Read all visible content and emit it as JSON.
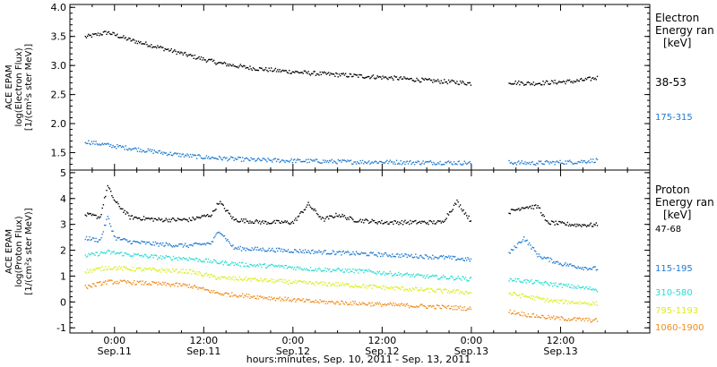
{
  "figure": {
    "xlabel": "hours:minutes, Sep. 10, 2011 - Sep. 13, 2011",
    "x_ticks": [
      {
        "time": "0:00",
        "date": "Sep.11",
        "hours": 0
      },
      {
        "time": "12:00",
        "date": "Sep.11",
        "hours": 12
      },
      {
        "time": "0:00",
        "date": "Sep.12",
        "hours": 24
      },
      {
        "time": "12:00",
        "date": "Sep.12",
        "hours": 36
      },
      {
        "time": "0:00",
        "date": "Sep.13",
        "hours": 48
      },
      {
        "time": "12:00",
        "date": "Sep.13",
        "hours": 60
      }
    ],
    "x_range_hours_from_sep11_0000": [
      -6,
      72
    ]
  },
  "chart_data": [
    {
      "type": "scatter",
      "panel": "electron",
      "ylabel_lines": [
        "ACE EPAM",
        "log(Electron Flux)",
        "[1/(cm²s ster MeV)]"
      ],
      "legend_title_lines": [
        "Electron",
        "Energy ran"
      ],
      "legend_unit": "[keV]",
      "ylim": [
        1.2,
        4.05
      ],
      "yticks": [
        "1.5",
        "2.0",
        "2.5",
        "3.0",
        "3.5",
        "4.0"
      ],
      "data_gap_hours": [
        48.5,
        52.5
      ],
      "series": [
        {
          "name": "38-53",
          "color": "#000000",
          "points": [
            [
              -4,
              3.5
            ],
            [
              -1,
              3.58
            ],
            [
              2,
              3.45
            ],
            [
              6,
              3.32
            ],
            [
              10,
              3.18
            ],
            [
              14,
              3.05
            ],
            [
              18,
              2.97
            ],
            [
              22,
              2.92
            ],
            [
              26,
              2.88
            ],
            [
              30,
              2.85
            ],
            [
              34,
              2.82
            ],
            [
              38,
              2.79
            ],
            [
              42,
              2.75
            ],
            [
              46,
              2.72
            ],
            [
              48,
              2.7
            ],
            [
              53,
              2.72
            ],
            [
              56,
              2.7
            ],
            [
              59,
              2.72
            ],
            [
              62,
              2.74
            ],
            [
              65,
              2.8
            ]
          ]
        },
        {
          "name": "175-315",
          "color": "#1f7ad1",
          "points": [
            [
              -4,
              1.7
            ],
            [
              0,
              1.62
            ],
            [
              4,
              1.55
            ],
            [
              8,
              1.48
            ],
            [
              12,
              1.43
            ],
            [
              16,
              1.4
            ],
            [
              20,
              1.38
            ],
            [
              24,
              1.37
            ],
            [
              28,
              1.36
            ],
            [
              32,
              1.35
            ],
            [
              36,
              1.35
            ],
            [
              40,
              1.34
            ],
            [
              44,
              1.34
            ],
            [
              48,
              1.33
            ],
            [
              53,
              1.34
            ],
            [
              56,
              1.33
            ],
            [
              59,
              1.34
            ],
            [
              62,
              1.35
            ],
            [
              65,
              1.38
            ]
          ]
        }
      ]
    },
    {
      "type": "scatter",
      "panel": "proton",
      "ylabel_lines": [
        "ACE EPAM",
        "log(Proton Flux)",
        "[1/(cm²s ster MeV)]"
      ],
      "legend_title_lines": [
        "Proton",
        "Energy ran"
      ],
      "legend_unit": "[keV]",
      "ylim": [
        -1.2,
        5.1
      ],
      "yticks": [
        "-1",
        "0",
        "1",
        "2",
        "3",
        "4",
        "5"
      ],
      "data_gap_hours": [
        48.5,
        52.5
      ],
      "series": [
        {
          "name": "47-68",
          "color": "#000000",
          "points": [
            [
              -4,
              3.4
            ],
            [
              -2,
              3.3
            ],
            [
              -1,
              4.5
            ],
            [
              0,
              3.9
            ],
            [
              2,
              3.3
            ],
            [
              6,
              3.2
            ],
            [
              10,
              3.2
            ],
            [
              13,
              3.4
            ],
            [
              14,
              3.9
            ],
            [
              16,
              3.2
            ],
            [
              20,
              3.1
            ],
            [
              24,
              3.1
            ],
            [
              26,
              3.8
            ],
            [
              28,
              3.2
            ],
            [
              30,
              3.4
            ],
            [
              32,
              3.2
            ],
            [
              36,
              3.1
            ],
            [
              40,
              3.1
            ],
            [
              44,
              3.1
            ],
            [
              46,
              3.9
            ],
            [
              48,
              3.1
            ],
            [
              53,
              3.5
            ],
            [
              55,
              3.7
            ],
            [
              57,
              3.7
            ],
            [
              58,
              3.1
            ],
            [
              62,
              3.0
            ],
            [
              65,
              3.0
            ]
          ]
        },
        {
          "name": "115-195",
          "color": "#1f7ad1",
          "points": [
            [
              -4,
              2.5
            ],
            [
              -2,
              2.4
            ],
            [
              -1,
              3.3
            ],
            [
              0,
              2.5
            ],
            [
              2,
              2.35
            ],
            [
              6,
              2.25
            ],
            [
              10,
              2.2
            ],
            [
              13,
              2.3
            ],
            [
              14,
              2.8
            ],
            [
              16,
              2.1
            ],
            [
              20,
              2.05
            ],
            [
              24,
              2.0
            ],
            [
              28,
              1.95
            ],
            [
              32,
              1.9
            ],
            [
              36,
              1.85
            ],
            [
              40,
              1.8
            ],
            [
              44,
              1.75
            ],
            [
              48,
              1.65
            ],
            [
              53,
              1.9
            ],
            [
              55,
              2.5
            ],
            [
              57,
              1.8
            ],
            [
              60,
              1.5
            ],
            [
              63,
              1.35
            ],
            [
              65,
              1.3
            ]
          ]
        },
        {
          "name": "310-580",
          "color": "#28dcd2",
          "points": [
            [
              -4,
              1.8
            ],
            [
              -1,
              1.95
            ],
            [
              2,
              1.85
            ],
            [
              6,
              1.75
            ],
            [
              10,
              1.7
            ],
            [
              14,
              1.55
            ],
            [
              18,
              1.45
            ],
            [
              22,
              1.4
            ],
            [
              26,
              1.3
            ],
            [
              30,
              1.25
            ],
            [
              34,
              1.2
            ],
            [
              38,
              1.1
            ],
            [
              42,
              1.0
            ],
            [
              46,
              0.95
            ],
            [
              48,
              0.9
            ],
            [
              53,
              0.9
            ],
            [
              56,
              0.8
            ],
            [
              59,
              0.7
            ],
            [
              62,
              0.6
            ],
            [
              65,
              0.5
            ]
          ]
        },
        {
          "name": "795-1193",
          "color": "#d8ee1c",
          "points": [
            [
              -4,
              1.2
            ],
            [
              -1,
              1.35
            ],
            [
              2,
              1.3
            ],
            [
              6,
              1.25
            ],
            [
              10,
              1.2
            ],
            [
              14,
              0.95
            ],
            [
              18,
              0.9
            ],
            [
              22,
              0.82
            ],
            [
              26,
              0.75
            ],
            [
              30,
              0.7
            ],
            [
              34,
              0.62
            ],
            [
              38,
              0.55
            ],
            [
              42,
              0.48
            ],
            [
              46,
              0.42
            ],
            [
              48,
              0.38
            ],
            [
              53,
              0.35
            ],
            [
              56,
              0.2
            ],
            [
              59,
              0.05
            ],
            [
              62,
              0.0
            ],
            [
              65,
              -0.05
            ]
          ]
        },
        {
          "name": "1060-1900",
          "color": "#f08c1a",
          "points": [
            [
              -4,
              0.6
            ],
            [
              -1,
              0.8
            ],
            [
              2,
              0.78
            ],
            [
              6,
              0.72
            ],
            [
              10,
              0.65
            ],
            [
              14,
              0.35
            ],
            [
              18,
              0.25
            ],
            [
              22,
              0.15
            ],
            [
              26,
              0.05
            ],
            [
              30,
              0.0
            ],
            [
              34,
              -0.05
            ],
            [
              38,
              -0.1
            ],
            [
              42,
              -0.15
            ],
            [
              46,
              -0.2
            ],
            [
              48,
              -0.25
            ],
            [
              53,
              -0.35
            ],
            [
              56,
              -0.5
            ],
            [
              59,
              -0.6
            ],
            [
              62,
              -0.65
            ],
            [
              65,
              -0.7
            ]
          ]
        }
      ]
    }
  ]
}
